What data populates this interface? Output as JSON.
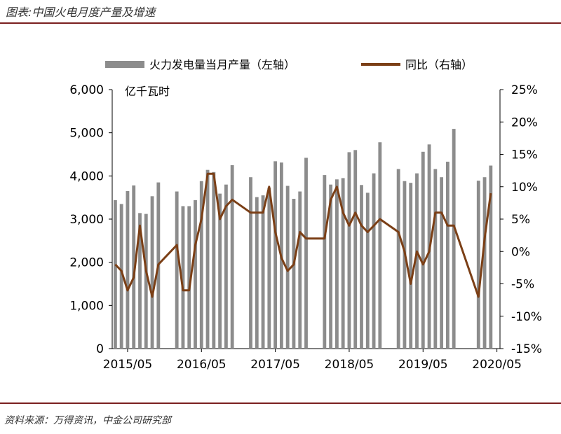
{
  "header": {
    "title": "图表:中国火电月度产量及增速"
  },
  "source": "资料来源：万得资讯，中金公司研究部",
  "chart_data": {
    "type": "bar+line",
    "unit_label": "亿千瓦时",
    "legend": {
      "position": "top-center",
      "bar_label": "火力发电量当月产量（左轴）",
      "line_label": "同比（右轴）"
    },
    "x_tick_labels": [
      "2015/05",
      "2016/05",
      "2017/05",
      "2018/05",
      "2019/05",
      "2020/05"
    ],
    "left_axis": {
      "ylim": [
        0,
        6000
      ],
      "ticks": [
        "6,000",
        "5,000",
        "4,000",
        "3,000",
        "2,000",
        "1,000",
        "0"
      ]
    },
    "right_axis": {
      "ylim": [
        -15,
        25
      ],
      "ticks": [
        "25%",
        "20%",
        "15%",
        "10%",
        "5%",
        "0%",
        "-5%",
        "-10%",
        "-15%"
      ]
    },
    "colors": {
      "bar": "#8c8c8c",
      "line": "#7b3f16",
      "rule": "#7a1f1f"
    },
    "months": [
      "2015/03",
      "2015/04",
      "2015/05",
      "2015/06",
      "2015/07",
      "2015/08",
      "2015/09",
      "2015/10",
      "2015/11",
      "2015/12",
      "2016/01",
      "2016/02",
      "2016/03",
      "2016/04",
      "2016/05",
      "2016/06",
      "2016/07",
      "2016/08",
      "2016/09",
      "2016/10",
      "2016/11",
      "2016/12",
      "2017/01",
      "2017/02",
      "2017/03",
      "2017/04",
      "2017/05",
      "2017/06",
      "2017/07",
      "2017/08",
      "2017/09",
      "2017/10",
      "2017/11",
      "2017/12",
      "2018/01",
      "2018/02",
      "2018/03",
      "2018/04",
      "2018/05",
      "2018/06",
      "2018/07",
      "2018/08",
      "2018/09",
      "2018/10",
      "2018/11",
      "2018/12",
      "2019/01",
      "2019/02",
      "2019/03",
      "2019/04",
      "2019/05",
      "2019/06",
      "2019/07",
      "2019/08",
      "2019/09",
      "2019/10",
      "2019/11",
      "2019/12",
      "2020/01",
      "2020/02",
      "2020/03",
      "2020/04",
      "2020/05"
    ],
    "bar_values": [
      3440,
      3350,
      3650,
      3780,
      3140,
      3120,
      3530,
      3850,
      null,
      null,
      3640,
      3300,
      3300,
      3440,
      3880,
      4140,
      4090,
      3590,
      3800,
      4250,
      null,
      null,
      3970,
      3510,
      3550,
      3730,
      4340,
      4310,
      3770,
      3470,
      3640,
      4420,
      null,
      null,
      4020,
      3800,
      3920,
      3950,
      4550,
      4600,
      3790,
      3610,
      4060,
      4780,
      null,
      null,
      4160,
      3880,
      3840,
      4060,
      4560,
      4730,
      4160,
      3970,
      4330,
      5090,
      null,
      null,
      null,
      3890,
      3970,
      4240,
      null
    ],
    "line_values": [
      -2,
      -3,
      -6,
      -4,
      4,
      -3,
      -7,
      -2,
      null,
      null,
      1,
      -6,
      -6,
      1,
      5,
      12,
      12,
      5,
      7,
      8,
      null,
      null,
      6,
      6,
      6,
      10,
      3,
      -1,
      -3,
      -2,
      3,
      2,
      null,
      null,
      2,
      8,
      10,
      6,
      4,
      6,
      4,
      3,
      4,
      5,
      null,
      null,
      3,
      0,
      -5,
      0,
      -2,
      0,
      6,
      6,
      4,
      4,
      null,
      null,
      null,
      -7,
      2,
      9,
      null
    ]
  }
}
